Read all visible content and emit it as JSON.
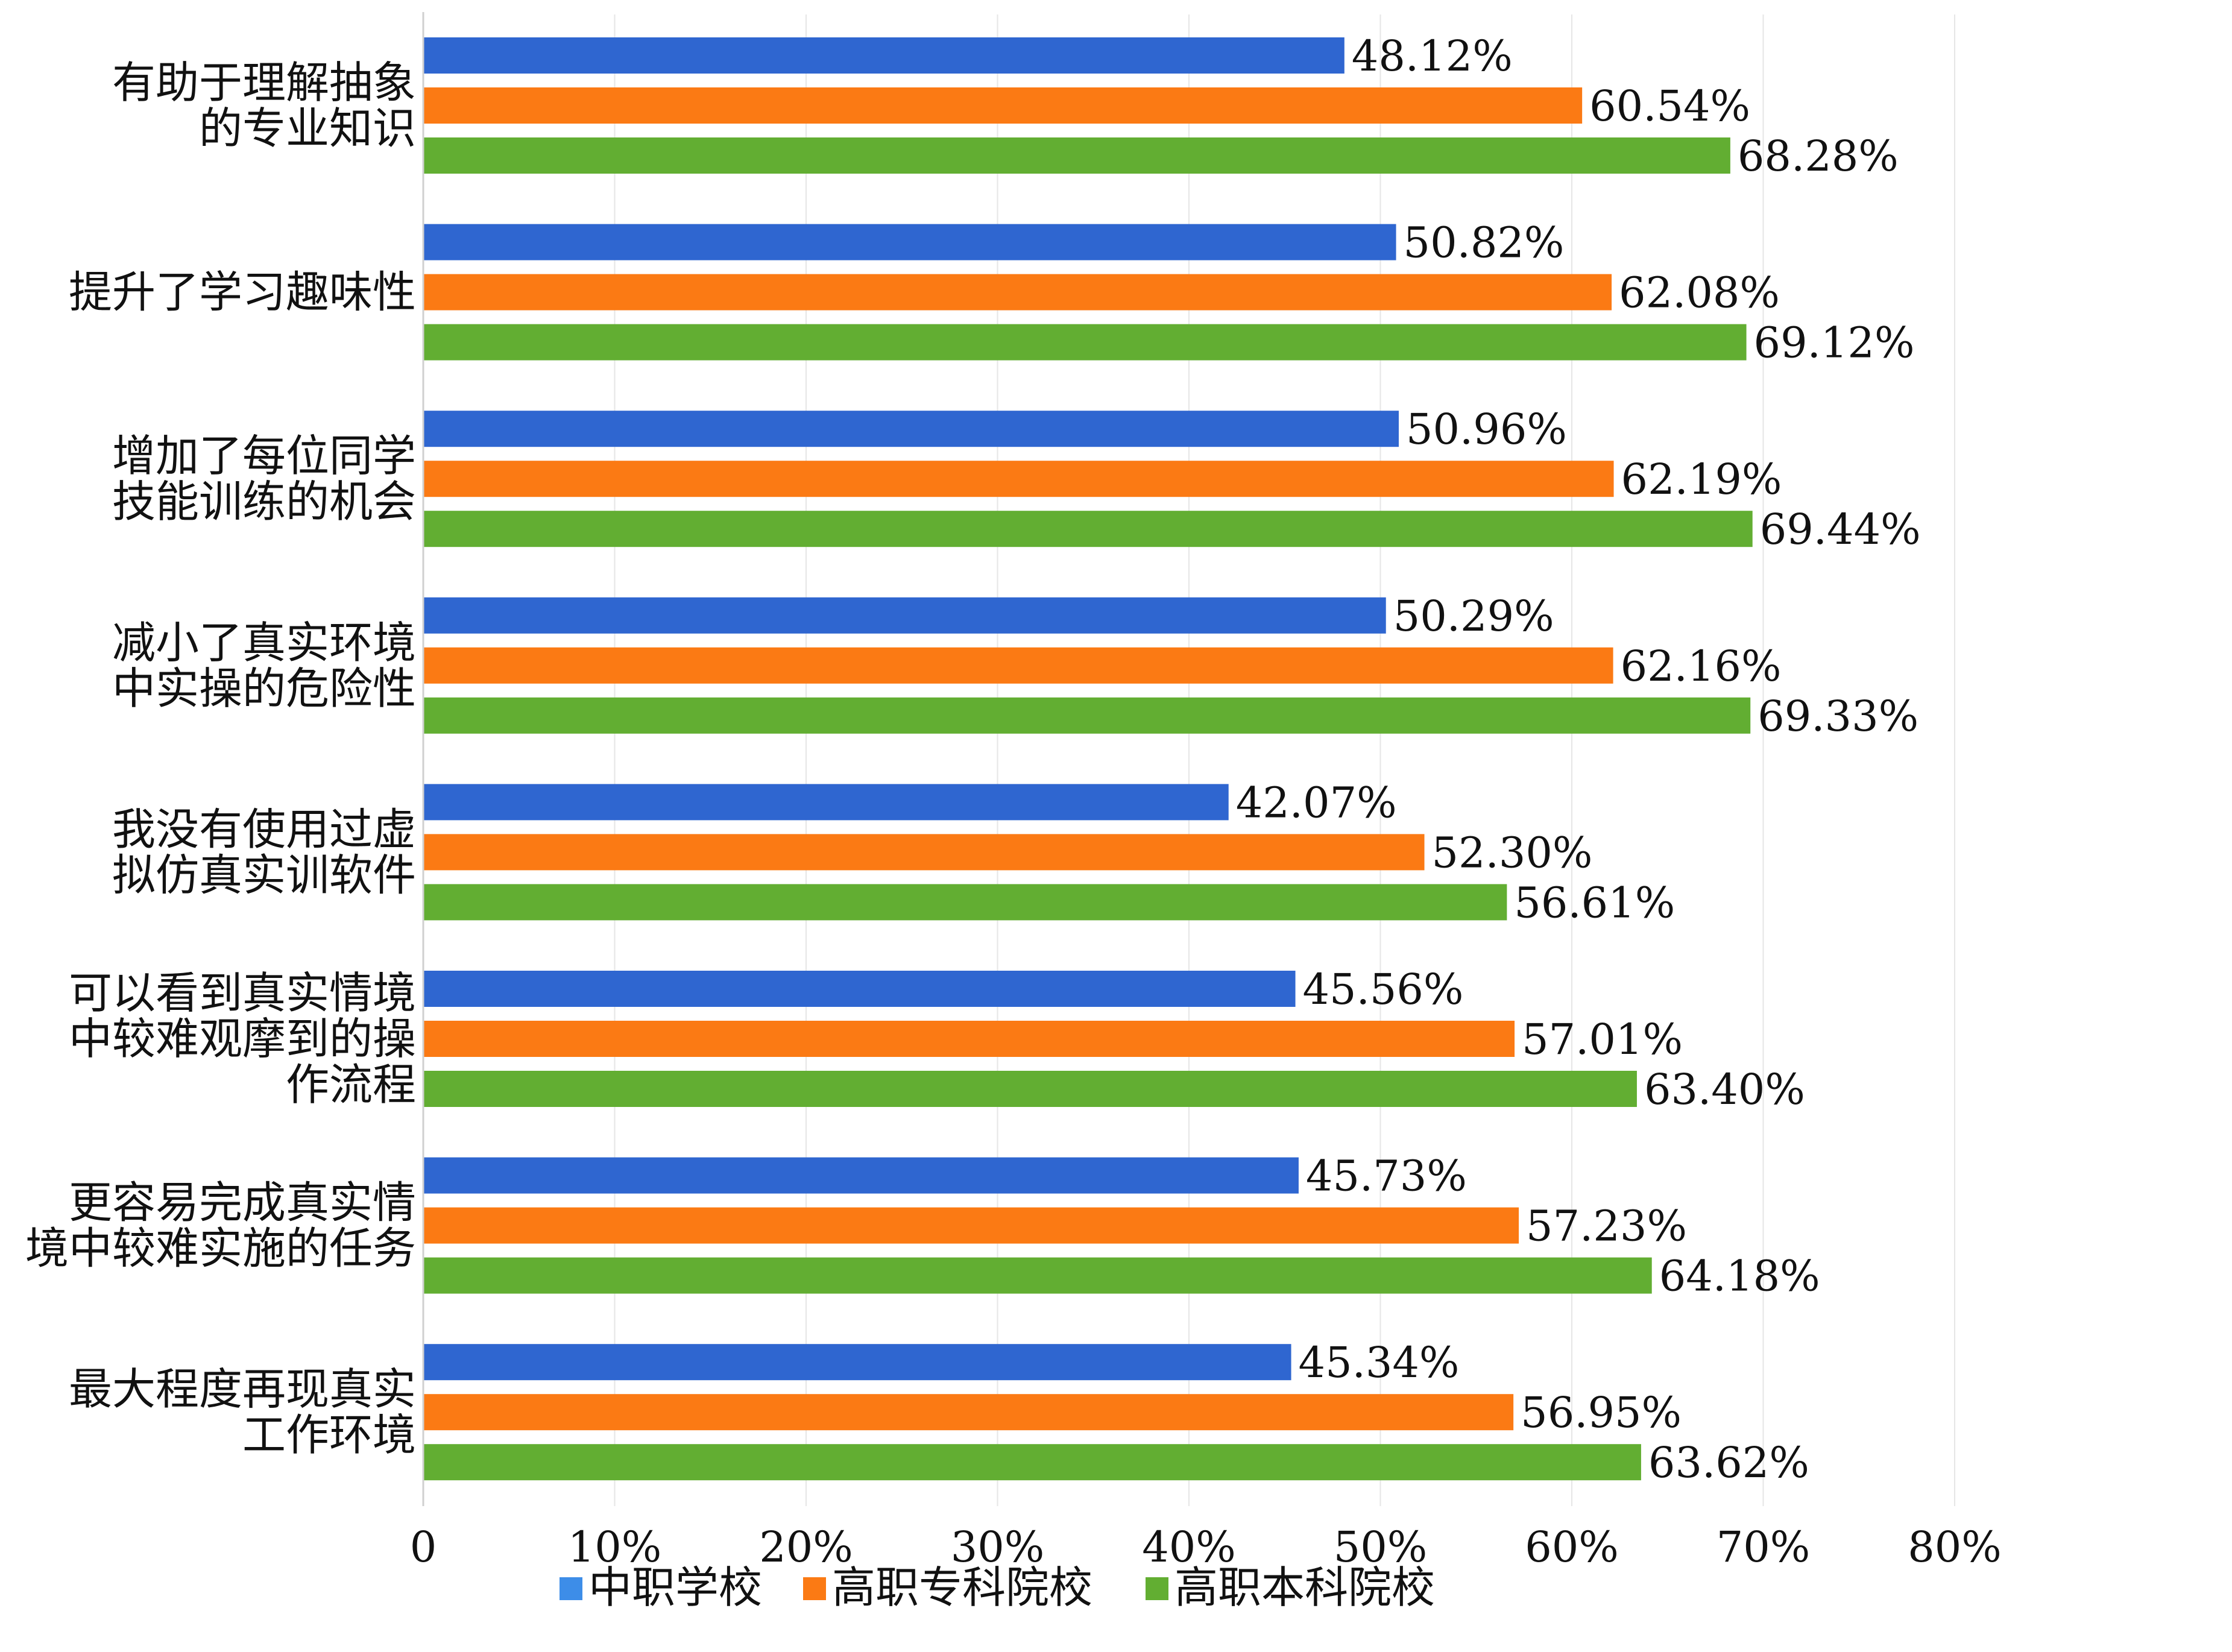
{
  "chart_data": {
    "type": "bar",
    "orientation": "horizontal",
    "categories": [
      [
        "有助于理解抽象",
        "的专业知识"
      ],
      [
        "提升了学习趣味性"
      ],
      [
        "增加了每位同学",
        "技能训练的机会"
      ],
      [
        "减小了真实环境",
        "中实操的危险性"
      ],
      [
        "我没有使用过虚",
        "拟仿真实训软件"
      ],
      [
        "可以看到真实情境",
        "中较难观摩到的操",
        "作流程"
      ],
      [
        "更容易完成真实情",
        "境中较难实施的任务"
      ],
      [
        "最大程度再现真实",
        "工作环境"
      ]
    ],
    "series": [
      {
        "name": "中职学校",
        "color": "#2f66d0",
        "values": [
          48.12,
          50.82,
          50.96,
          50.29,
          42.07,
          45.56,
          45.73,
          45.34
        ],
        "labels": [
          "48.12%",
          "50.82%",
          "50.96%",
          "50.29%",
          "42.07%",
          "45.56%",
          "45.73%",
          "45.34%"
        ]
      },
      {
        "name": "高职专科院校",
        "color": "#fb7a14",
        "values": [
          60.54,
          62.08,
          62.19,
          62.16,
          52.3,
          57.01,
          57.23,
          56.95
        ],
        "labels": [
          "60.54%",
          "62.08%",
          "62.19%",
          "62.16%",
          "52.30%",
          "57.01%",
          "57.23%",
          "56.95%"
        ]
      },
      {
        "name": "高职本科院校",
        "color": "#62ae32",
        "values": [
          68.28,
          69.12,
          69.44,
          69.33,
          56.61,
          63.4,
          64.18,
          63.62
        ],
        "labels": [
          "68.28%",
          "69.12%",
          "69.44%",
          "69.33%",
          "56.61%",
          "63.40%",
          "64.18%",
          "63.62%"
        ]
      }
    ],
    "xlim": [
      0,
      80
    ],
    "x_ticks": [
      0,
      10,
      20,
      30,
      40,
      50,
      60,
      70,
      80
    ],
    "x_tick_labels": [
      "0",
      "10%",
      "20%",
      "30%",
      "40%",
      "50%",
      "60%",
      "70%",
      "80%"
    ],
    "grid": "vertical",
    "legend_position": "bottom",
    "legend_marker_color": "#3d8de8",
    "gridline_color": "#e6e6e6",
    "axis_color": "#d0d0d0"
  }
}
